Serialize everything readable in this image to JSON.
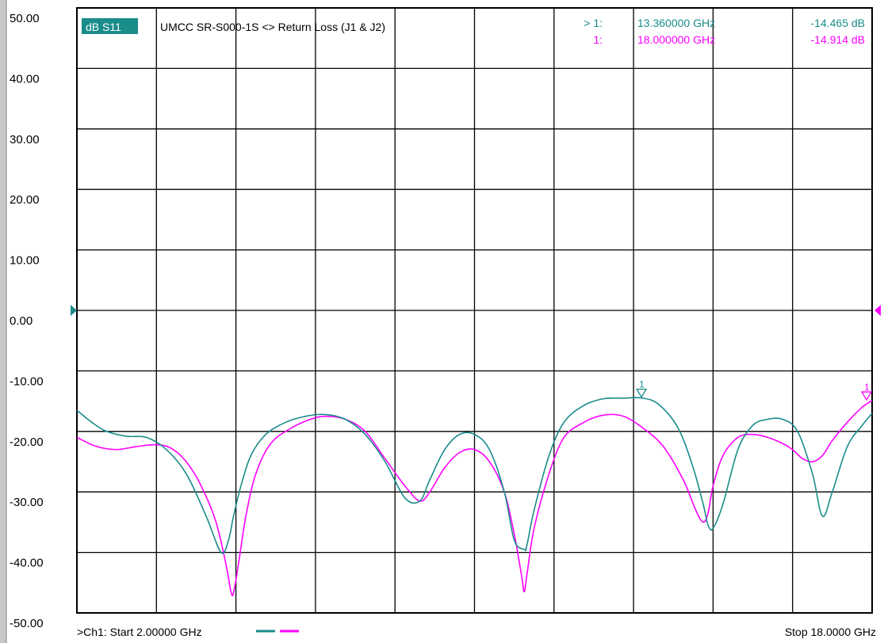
{
  "header": {
    "trace_label": "dB S11",
    "title": "UMCC  SR-S000-1S <> Return Loss (J1 & J2)"
  },
  "markers": [
    {
      "id": "> 1:",
      "freq": "13.360000 GHz",
      "value": "-14.465 dB",
      "color": "#1a8c8a"
    },
    {
      "id": "1:",
      "freq": "18.000000 GHz",
      "value": "-14.914 dB",
      "color": "#ff00ff"
    }
  ],
  "footer": {
    "start": ">Ch1: Start  2.00000 GHz",
    "stop": "Stop  18.0000 GHz"
  },
  "colors": {
    "trace1": "#1a8c8a",
    "trace2": "#ff00ff",
    "label_bg": "#1a8c8a",
    "grid": "#000000"
  },
  "chart_data": {
    "type": "line",
    "xlim": [
      2,
      18
    ],
    "ylim": [
      -50,
      50
    ],
    "x_unit": "GHz",
    "y_unit": "dB",
    "yticks": [
      "50.00",
      "40.00",
      "30.00",
      "20.00",
      "10.00",
      "0.00",
      "-10.00",
      "-20.00",
      "-30.00",
      "-40.00",
      "-50.00"
    ],
    "reference_level": 0,
    "grid": true,
    "series": [
      {
        "color": "#1a8c8a",
        "x": [
          2.0,
          2.3,
          2.6,
          3.0,
          3.4,
          3.8,
          4.2,
          4.6,
          4.9,
          5.05,
          5.15,
          5.3,
          5.5,
          5.8,
          6.2,
          6.6,
          7.0,
          7.4,
          7.8,
          8.2,
          8.6,
          8.9,
          9.1,
          9.4,
          9.7,
          10.0,
          10.3,
          10.6,
          10.8,
          11.0,
          11.05,
          11.2,
          11.5,
          11.8,
          12.2,
          12.6,
          13.0,
          13.36,
          13.7,
          14.1,
          14.4,
          14.6,
          14.7,
          14.8,
          15.0,
          15.3,
          15.6,
          15.9,
          16.2,
          16.5,
          16.8,
          17.0,
          17.2,
          17.5,
          17.8,
          18.0
        ],
        "y": [
          -16.5,
          -18.5,
          -20.0,
          -20.8,
          -21.0,
          -23.0,
          -27.0,
          -34.0,
          -40.0,
          -38.0,
          -34.0,
          -29.0,
          -24.0,
          -20.5,
          -18.5,
          -17.5,
          -17.2,
          -18.0,
          -20.5,
          -25.0,
          -31.0,
          -31.5,
          -28.0,
          -23.0,
          -20.5,
          -20.5,
          -23.0,
          -30.0,
          -38.0,
          -39.5,
          -39.0,
          -33.0,
          -24.0,
          -18.5,
          -15.7,
          -14.6,
          -14.5,
          -14.47,
          -15.5,
          -19.5,
          -26.0,
          -32.0,
          -35.5,
          -36.0,
          -32.0,
          -23.0,
          -19.0,
          -18.0,
          -18.0,
          -20.0,
          -27.0,
          -34.0,
          -30.0,
          -22.5,
          -19.0,
          -17.0
        ]
      },
      {
        "color": "#ff00ff",
        "x": [
          2.0,
          2.4,
          2.8,
          3.2,
          3.6,
          3.9,
          4.2,
          4.5,
          4.8,
          5.0,
          5.1,
          5.15,
          5.25,
          5.4,
          5.6,
          5.9,
          6.3,
          6.7,
          7.0,
          7.4,
          7.8,
          8.2,
          8.6,
          8.9,
          9.1,
          9.4,
          9.7,
          10.0,
          10.3,
          10.6,
          10.8,
          10.95,
          11.0,
          11.05,
          11.2,
          11.5,
          11.8,
          12.2,
          12.6,
          13.0,
          13.4,
          13.8,
          14.2,
          14.45,
          14.6,
          14.7,
          14.8,
          15.0,
          15.3,
          15.6,
          15.9,
          16.2,
          16.4,
          16.6,
          16.8,
          17.0,
          17.2,
          17.5,
          17.8,
          18.0
        ],
        "y": [
          -21.0,
          -22.5,
          -23.0,
          -22.5,
          -22.2,
          -22.8,
          -25.0,
          -29.0,
          -35.0,
          -42.0,
          -46.5,
          -46.7,
          -42.0,
          -34.0,
          -27.0,
          -22.0,
          -19.5,
          -18.0,
          -17.5,
          -18.0,
          -20.0,
          -24.5,
          -29.0,
          -31.5,
          -30.0,
          -26.0,
          -23.5,
          -23.0,
          -25.0,
          -30.0,
          -37.0,
          -44.0,
          -46.5,
          -44.0,
          -36.0,
          -27.0,
          -21.0,
          -18.5,
          -17.3,
          -17.5,
          -19.5,
          -22.5,
          -28.0,
          -33.0,
          -35.0,
          -33.5,
          -29.0,
          -24.0,
          -21.0,
          -20.5,
          -21.0,
          -22.0,
          -23.0,
          -24.5,
          -25.0,
          -24.0,
          -21.5,
          -18.5,
          -16.0,
          -14.9
        ]
      }
    ],
    "markers": [
      {
        "x": 13.36,
        "y": -14.465,
        "series": 0
      },
      {
        "x": 18.0,
        "y": -14.914,
        "series": 1
      }
    ]
  }
}
